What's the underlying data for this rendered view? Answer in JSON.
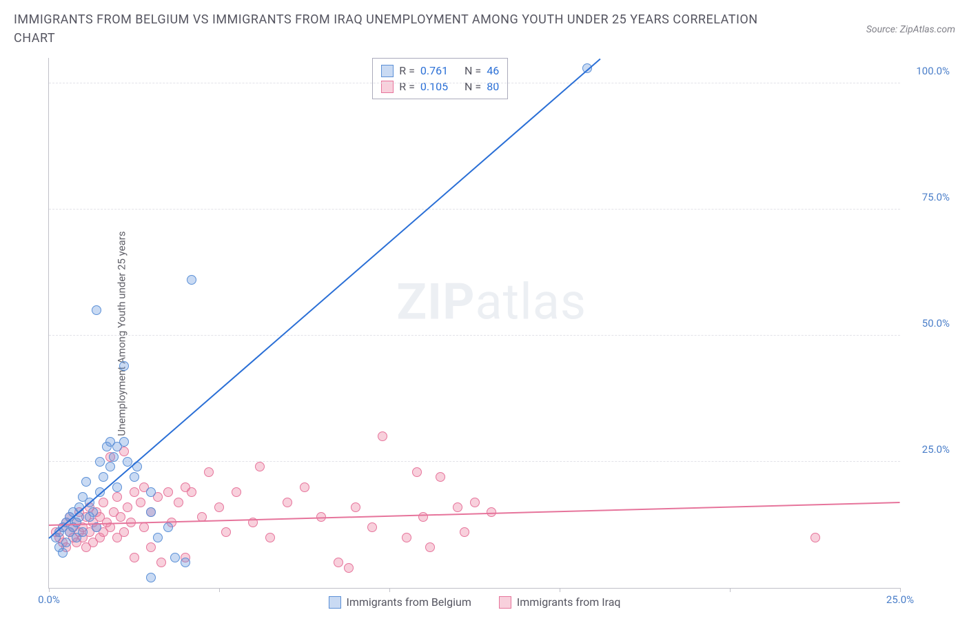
{
  "title": "IMMIGRANTS FROM BELGIUM VS IMMIGRANTS FROM IRAQ UNEMPLOYMENT AMONG YOUTH UNDER 25 YEARS CORRELATION CHART",
  "source_label": "Source: ZipAtlas.com",
  "ylabel": "Unemployment Among Youth under 25 years",
  "watermark_bold": "ZIP",
  "watermark_light": "atlas",
  "chart": {
    "type": "scatter",
    "background_color": "#ffffff",
    "grid_color": "#e2e2e8",
    "axis_color": "#c0c0c8",
    "xlim": [
      0,
      25
    ],
    "ylim": [
      0,
      105
    ],
    "xticks": [
      0,
      5,
      10,
      15,
      20,
      25
    ],
    "xtick_labels": [
      "0.0%",
      "",
      "",
      "",
      "",
      "25.0%"
    ],
    "xtick_label_colors": [
      "#4a7ec9",
      "",
      "",
      "",
      "",
      "#4a7ec9"
    ],
    "yticks": [
      25,
      50,
      75,
      100
    ],
    "ytick_labels": [
      "25.0%",
      "50.0%",
      "75.0%",
      "100.0%"
    ],
    "marker_radius": 7,
    "marker_opacity": 0.45,
    "marker_stroke_width": 1.2,
    "title_fontsize": 18,
    "label_fontsize": 15,
    "tick_fontsize": 15
  },
  "series": {
    "belgium": {
      "label": "Immigrants from Belgium",
      "color_fill": "rgba(100,150,220,0.35)",
      "color_stroke": "#5a8fd6",
      "reg_color": "#2a6fd6",
      "R": "0.761",
      "N": "46",
      "reg_line": {
        "x1": 0,
        "y1": 10,
        "x2": 16.2,
        "y2": 105
      },
      "points": [
        [
          0.2,
          10
        ],
        [
          0.3,
          11
        ],
        [
          0.4,
          12
        ],
        [
          0.5,
          9
        ],
        [
          0.5,
          13
        ],
        [
          0.6,
          14
        ],
        [
          0.6,
          11
        ],
        [
          0.7,
          12
        ],
        [
          0.7,
          15
        ],
        [
          0.8,
          10
        ],
        [
          0.8,
          13
        ],
        [
          0.9,
          16
        ],
        [
          0.9,
          14
        ],
        [
          1.0,
          18
        ],
        [
          1.0,
          11
        ],
        [
          1.1,
          21
        ],
        [
          1.2,
          14
        ],
        [
          1.2,
          17
        ],
        [
          1.3,
          15
        ],
        [
          1.4,
          12
        ],
        [
          1.5,
          25
        ],
        [
          1.5,
          19
        ],
        [
          1.6,
          22
        ],
        [
          1.7,
          28
        ],
        [
          1.8,
          24
        ],
        [
          1.8,
          29
        ],
        [
          1.9,
          26
        ],
        [
          2.0,
          28
        ],
        [
          2.0,
          20
        ],
        [
          2.2,
          29
        ],
        [
          2.3,
          25
        ],
        [
          2.5,
          22
        ],
        [
          2.6,
          24
        ],
        [
          3.0,
          19
        ],
        [
          3.0,
          15
        ],
        [
          3.2,
          10
        ],
        [
          3.5,
          12
        ],
        [
          3.7,
          6
        ],
        [
          4.0,
          5
        ],
        [
          1.4,
          55
        ],
        [
          2.2,
          44
        ],
        [
          4.2,
          61
        ],
        [
          3.0,
          2
        ],
        [
          0.3,
          8
        ],
        [
          0.4,
          7
        ],
        [
          15.8,
          103
        ]
      ]
    },
    "iraq": {
      "label": "Immigrants from Iraq",
      "color_fill": "rgba(235,120,155,0.35)",
      "color_stroke": "#e6749b",
      "reg_color": "#e6749b",
      "R": "0.105",
      "N": "80",
      "reg_line": {
        "x1": 0,
        "y1": 12.5,
        "x2": 25,
        "y2": 17
      },
      "points": [
        [
          0.2,
          11
        ],
        [
          0.3,
          10
        ],
        [
          0.4,
          12
        ],
        [
          0.4,
          9
        ],
        [
          0.5,
          13
        ],
        [
          0.5,
          8
        ],
        [
          0.6,
          11
        ],
        [
          0.6,
          14
        ],
        [
          0.7,
          10
        ],
        [
          0.7,
          12
        ],
        [
          0.8,
          9
        ],
        [
          0.8,
          13
        ],
        [
          0.9,
          11
        ],
        [
          0.9,
          15
        ],
        [
          1.0,
          10
        ],
        [
          1.0,
          12
        ],
        [
          1.1,
          14
        ],
        [
          1.1,
          8
        ],
        [
          1.2,
          11
        ],
        [
          1.2,
          16
        ],
        [
          1.3,
          13
        ],
        [
          1.3,
          9
        ],
        [
          1.4,
          12
        ],
        [
          1.4,
          15
        ],
        [
          1.5,
          10
        ],
        [
          1.5,
          14
        ],
        [
          1.6,
          11
        ],
        [
          1.6,
          17
        ],
        [
          1.7,
          13
        ],
        [
          1.8,
          26
        ],
        [
          1.8,
          12
        ],
        [
          1.9,
          15
        ],
        [
          2.0,
          10
        ],
        [
          2.0,
          18
        ],
        [
          2.1,
          14
        ],
        [
          2.2,
          11
        ],
        [
          2.2,
          27
        ],
        [
          2.3,
          16
        ],
        [
          2.4,
          13
        ],
        [
          2.5,
          19
        ],
        [
          2.5,
          6
        ],
        [
          2.7,
          17
        ],
        [
          2.8,
          12
        ],
        [
          2.8,
          20
        ],
        [
          3.0,
          15
        ],
        [
          3.0,
          8
        ],
        [
          3.2,
          18
        ],
        [
          3.3,
          5
        ],
        [
          3.5,
          19
        ],
        [
          3.6,
          13
        ],
        [
          3.8,
          17
        ],
        [
          4.0,
          20
        ],
        [
          4.0,
          6
        ],
        [
          4.2,
          19
        ],
        [
          4.5,
          14
        ],
        [
          4.7,
          23
        ],
        [
          5.0,
          16
        ],
        [
          5.2,
          11
        ],
        [
          5.5,
          19
        ],
        [
          6.0,
          13
        ],
        [
          6.2,
          24
        ],
        [
          6.5,
          10
        ],
        [
          7.0,
          17
        ],
        [
          7.5,
          20
        ],
        [
          8.0,
          14
        ],
        [
          8.5,
          5
        ],
        [
          9.0,
          16
        ],
        [
          9.5,
          12
        ],
        [
          9.8,
          30
        ],
        [
          10.5,
          10
        ],
        [
          10.8,
          23
        ],
        [
          11.0,
          14
        ],
        [
          11.2,
          8
        ],
        [
          11.5,
          22
        ],
        [
          12.0,
          16
        ],
        [
          12.2,
          11
        ],
        [
          12.5,
          17
        ],
        [
          13.0,
          15
        ],
        [
          22.5,
          10
        ],
        [
          8.8,
          4
        ]
      ]
    }
  },
  "rn_legend": {
    "r_label": "R =",
    "n_label": "N ="
  }
}
